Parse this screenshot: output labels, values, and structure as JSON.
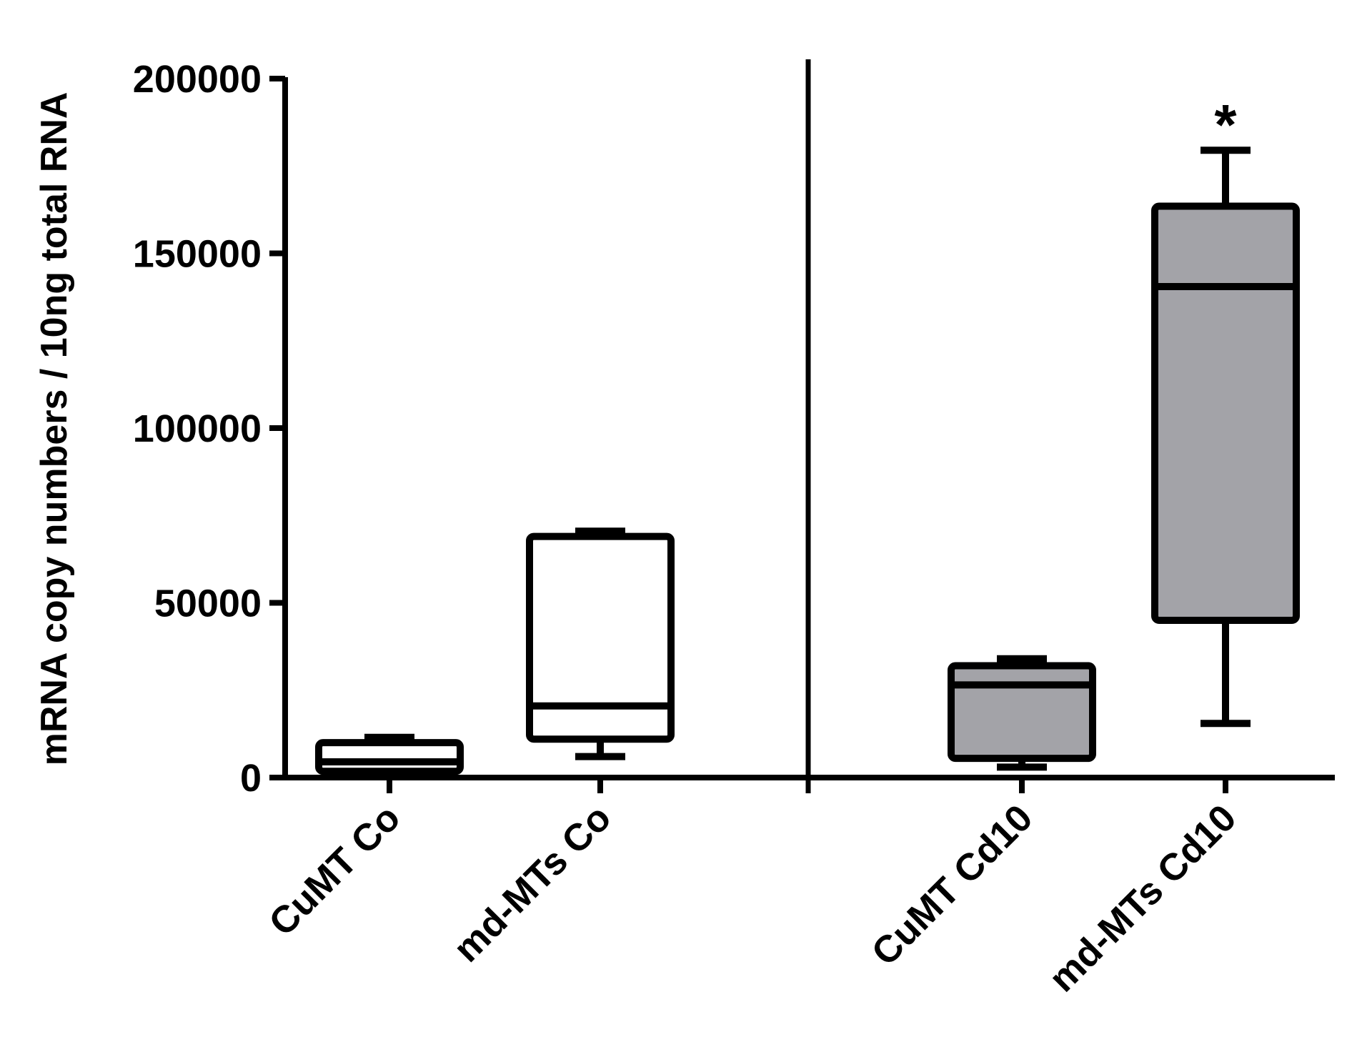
{
  "chart_data": {
    "type": "box",
    "title": "",
    "xlabel": "",
    "ylabel": "mRNA copy numbers / 10ng total RNA",
    "ylim": [
      0,
      200000
    ],
    "yticks": [
      0,
      50000,
      100000,
      150000,
      200000
    ],
    "ytick_labels": [
      "0",
      "50000",
      "100000",
      "150000",
      "200000"
    ],
    "categories": [
      "CuMT Co",
      "md-MTs Co",
      "CuMT Cd10",
      "md-MTs Cd10"
    ],
    "boxes": [
      {
        "category": "CuMT Co",
        "min": 1000,
        "q1": 1800,
        "median": 4500,
        "q3": 10000,
        "max": 11500,
        "fill": "#ffffff",
        "annotation": ""
      },
      {
        "category": "md-MTs Co",
        "min": 6000,
        "q1": 11000,
        "median": 20500,
        "q3": 69000,
        "max": 70500,
        "fill": "#ffffff",
        "annotation": ""
      },
      {
        "category": "CuMT Cd10",
        "min": 3000,
        "q1": 5500,
        "median": 26500,
        "q3": 32000,
        "max": 34000,
        "fill": "#a3a3a8",
        "annotation": ""
      },
      {
        "category": "md-MTs Cd10",
        "min": 15500,
        "q1": 45000,
        "median": 140500,
        "q3": 163500,
        "max": 179500,
        "fill": "#a3a3a8",
        "annotation": "*"
      }
    ],
    "separator_after_category": 2,
    "grid": false,
    "legend": "none",
    "colors": {
      "stroke": "#000000",
      "gray_fill": "#a3a3a8",
      "white_fill": "#ffffff"
    }
  }
}
